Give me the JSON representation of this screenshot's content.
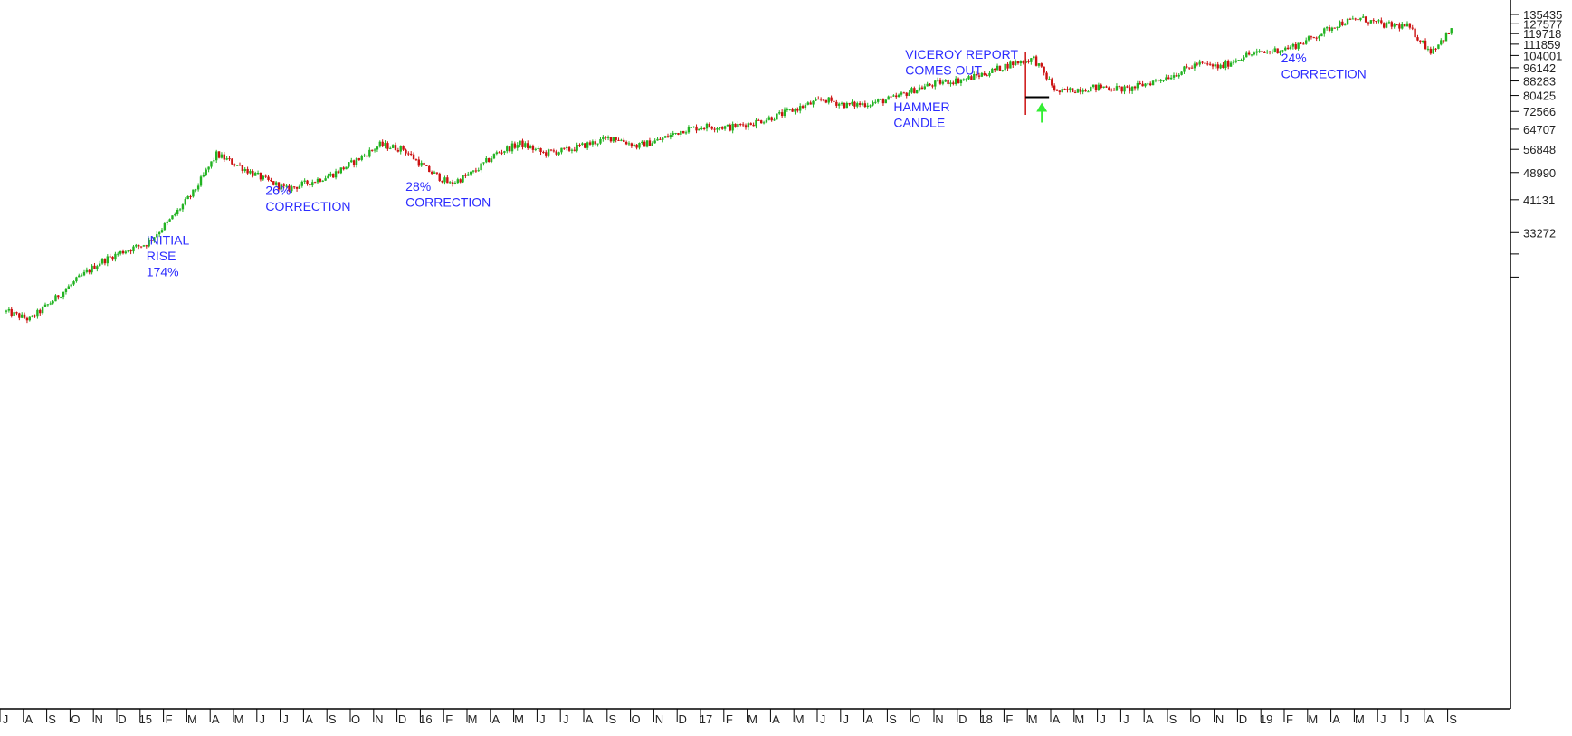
{
  "chart_data": {
    "type": "candlestick",
    "scale": "log",
    "grid": false,
    "colors": {
      "up": "#22b322",
      "down": "#cc1111",
      "annotation": "#2b2bff",
      "arrow": "#33ee33",
      "axis": "#000000"
    },
    "y_ticks": [
      "135435",
      "127577",
      "119718",
      "111859",
      "104001",
      "96142",
      "88283",
      "80425",
      "72566",
      "64707",
      "56848",
      "48990",
      "41131",
      "33272"
    ],
    "x_ticks": [
      "J",
      "A",
      "S",
      "O",
      "N",
      "D",
      "15",
      "F",
      "M",
      "A",
      "M",
      "J",
      "J",
      "A",
      "S",
      "O",
      "N",
      "D",
      "16",
      "F",
      "M",
      "A",
      "M",
      "J",
      "J",
      "A",
      "S",
      "O",
      "N",
      "D",
      "17",
      "F",
      "M",
      "A",
      "M",
      "J",
      "J",
      "A",
      "S",
      "O",
      "N",
      "D",
      "18",
      "F",
      "M",
      "A",
      "M",
      "J",
      "J",
      "A",
      "S",
      "O",
      "N",
      "D",
      "19",
      "F",
      "M",
      "A",
      "M",
      "J",
      "J",
      "A",
      "S"
    ],
    "series": [
      {
        "x_start": "J (2014)",
        "x_end": "S (2019)",
        "approx_close_by_month": [
          20000,
          19000,
          21500,
          24500,
          27500,
          29500,
          31000,
          36000,
          43000,
          55000,
          51000,
          47000,
          44000,
          46000,
          48500,
          53000,
          58500,
          57000,
          50000,
          45500,
          49000,
          55500,
          59000,
          55500,
          56500,
          59000,
          61500,
          58000,
          60500,
          64500,
          66000,
          65500,
          67500,
          70500,
          74500,
          78500,
          75500,
          76500,
          79000,
          84000,
          87500,
          89000,
          93000,
          98500,
          102000,
          82000,
          84000,
          85000,
          83500,
          87500,
          92000,
          98500,
          96500,
          104000,
          106500,
          109500,
          117000,
          127500,
          132000,
          126500,
          125500,
          107000,
          124000
        ]
      }
    ],
    "annotations": [
      {
        "lines": [
          "INITIAL",
          "RISE",
          "174%"
        ]
      },
      {
        "lines": [
          "26%",
          "CORRECTION"
        ]
      },
      {
        "lines": [
          "28%",
          "CORRECTION"
        ]
      },
      {
        "lines": [
          "VICEROY REPORT",
          "COMES OUT"
        ]
      },
      {
        "lines": [
          "HAMMER",
          "CANDLE"
        ]
      },
      {
        "lines": [
          "24%",
          "CORRECTION"
        ]
      }
    ]
  }
}
